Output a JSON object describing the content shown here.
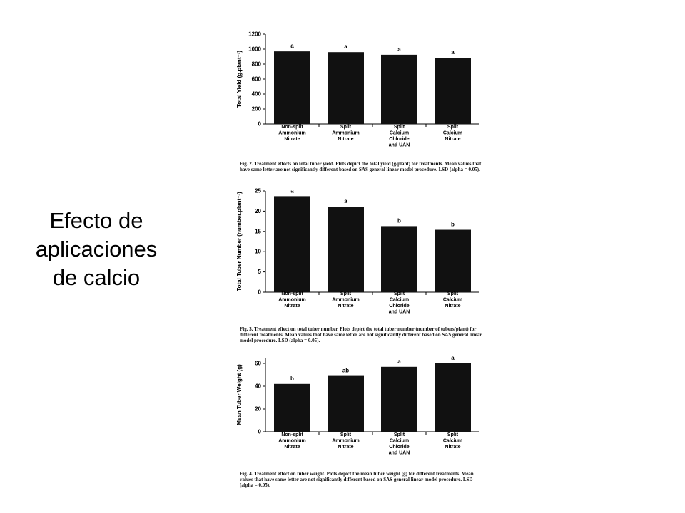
{
  "slide": {
    "title_lines": [
      "Efecto de",
      "aplicaciones",
      "de calcio"
    ]
  },
  "chart_data": [
    {
      "type": "bar",
      "categories": [
        [
          "Non-split",
          "Ammonium",
          "Nitrate"
        ],
        [
          "Split",
          "Ammonium",
          "Nitrate"
        ],
        [
          "Split",
          "Calcium",
          "Chloride",
          "and UAN"
        ],
        [
          "Split",
          "Calcium",
          "Nitrate"
        ]
      ],
      "values": [
        970,
        960,
        925,
        885
      ],
      "letters": [
        "a",
        "a",
        "a",
        "a"
      ],
      "ylabel": "Total Yield (g.plant⁻¹)",
      "ylim": [
        0,
        1200
      ],
      "yticks": [
        0,
        200,
        400,
        600,
        800,
        1000,
        1200
      ],
      "bar_color": "#111111",
      "caption": "Fig. 2. Treatment effects on total tuber yield. Plots depict the total yield (g/plant) for treatments. Mean values that have same letter are not significantly different based on SAS general linear model procedure. LSD (alpha = 0.05)."
    },
    {
      "type": "bar",
      "categories": [
        [
          "Non-split",
          "Ammonium",
          "Nitrate"
        ],
        [
          "Split",
          "Ammonium",
          "Nitrate"
        ],
        [
          "Split",
          "Calcium",
          "Chloride",
          "and UAN"
        ],
        [
          "Split",
          "Calcium",
          "Nitrate"
        ]
      ],
      "values": [
        23.7,
        21.1,
        16.3,
        15.4
      ],
      "letters": [
        "a",
        "a",
        "b",
        "b"
      ],
      "ylabel": "Total Tuber Number (number.plant⁻¹)",
      "ylim": [
        0,
        25
      ],
      "yticks": [
        0,
        5,
        10,
        15,
        20,
        25
      ],
      "bar_color": "#111111",
      "caption": "Fig. 3. Treatment effect on total tuber number. Plots depict the total tuber number (number of tubers/plant) for different treatments. Mean values that have same letter are not significantly different based on SAS general linear model procedure. LSD (alpha = 0.05)."
    },
    {
      "type": "bar",
      "categories": [
        [
          "Non-split",
          "Ammonium",
          "Nitrate"
        ],
        [
          "Split",
          "Ammonium",
          "Nitrate"
        ],
        [
          "Split",
          "Calcium",
          "Chloride",
          "and UAN"
        ],
        [
          "Split",
          "Calcium",
          "Nitrate"
        ]
      ],
      "values": [
        42,
        49,
        57,
        60
      ],
      "letters": [
        "b",
        "ab",
        "a",
        "a"
      ],
      "ylabel": "Mean Tuber Weight (g)",
      "ylim": [
        0,
        65
      ],
      "yticks": [
        0,
        20,
        40,
        60
      ],
      "bar_color": "#111111",
      "caption": "Fig. 4. Treatment effect on tuber weight. Plots depict the mean tuber weight (g) for different treatments. Mean values that have same letter are not significantly different based on SAS general linear model procedure. LSD (alpha = 0.05)."
    }
  ]
}
